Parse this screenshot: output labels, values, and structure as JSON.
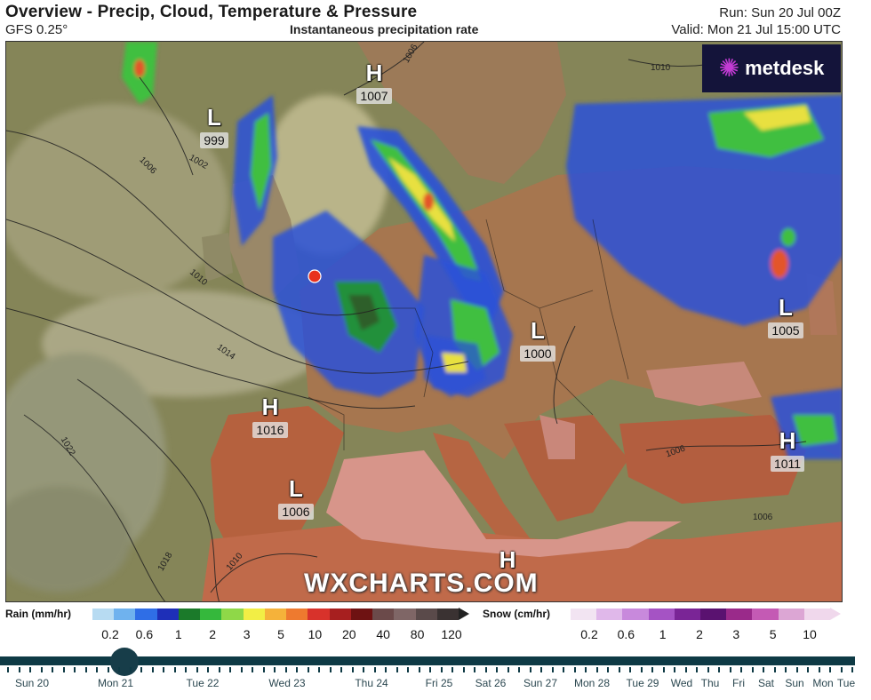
{
  "header": {
    "title": "Overview - Precip, Cloud, Temperature & Pressure",
    "model": "GFS 0.25°",
    "subtitle": "Instantaneous precipitation rate",
    "run": "Run: Sun 20 Jul 00Z",
    "valid": "Valid: Mon 21 Jul 15:00 UTC"
  },
  "logo": {
    "text": "metdesk",
    "icon": "starburst-icon",
    "background": "#14143a",
    "accent": "#c23bd4"
  },
  "watermark": "WXCHARTS.COM",
  "pressure_centers": [
    {
      "letter": "H",
      "value": "1007"
    },
    {
      "letter": "L",
      "value": "999"
    },
    {
      "letter": "L",
      "value": "1005"
    },
    {
      "letter": "L",
      "value": "1000"
    },
    {
      "letter": "H",
      "value": "1016"
    },
    {
      "letter": "H",
      "value": "1011"
    },
    {
      "letter": "L",
      "value": "1006"
    },
    {
      "letter": "H",
      "value": ""
    }
  ],
  "isobar_labels": [
    "1006",
    "1006",
    "1002",
    "1010",
    "1010",
    "1014",
    "1022",
    "1018",
    "1010",
    "1006",
    "1006"
  ],
  "location_marker": {
    "color": "#e8321e"
  },
  "rain_legend": {
    "label": "Rain (mm/hr)",
    "ticks": [
      "0.2",
      "0.6",
      "1",
      "2",
      "3",
      "5",
      "10",
      "20",
      "40",
      "80",
      "120"
    ],
    "colors": [
      "#b7dbf2",
      "#6fb2ee",
      "#2f6ee6",
      "#1e2fb8",
      "#1b7a2a",
      "#35b83c",
      "#8fd848",
      "#f2ee45",
      "#f5b23a",
      "#ee7a2f",
      "#d8322b",
      "#a71f1f",
      "#6e1212",
      "#6b4a4a",
      "#7f6666",
      "#5a4a4a",
      "#3a3232"
    ]
  },
  "snow_legend": {
    "label": "Snow (cm/hr)",
    "ticks": [
      "0.2",
      "0.6",
      "1",
      "2",
      "3",
      "5",
      "10"
    ],
    "colors": [
      "#f2e4f2",
      "#e0b8ea",
      "#c889dc",
      "#a553c4",
      "#7a2596",
      "#5a1270",
      "#9a2a8a",
      "#c45ab4",
      "#dca6d4",
      "#f0d8ec"
    ]
  },
  "timeline": {
    "current_day": "Mon 21",
    "days": [
      "Sun 20",
      "Mon 21",
      "Tue 22",
      "Wed 23",
      "Thu 24",
      "Fri 25",
      "Sat 26",
      "Sun 27",
      "Mon 28",
      "Tue 29",
      "Wed",
      "Thu",
      "Fri",
      "Sat",
      "Sun",
      "Mon",
      "Tue"
    ]
  }
}
